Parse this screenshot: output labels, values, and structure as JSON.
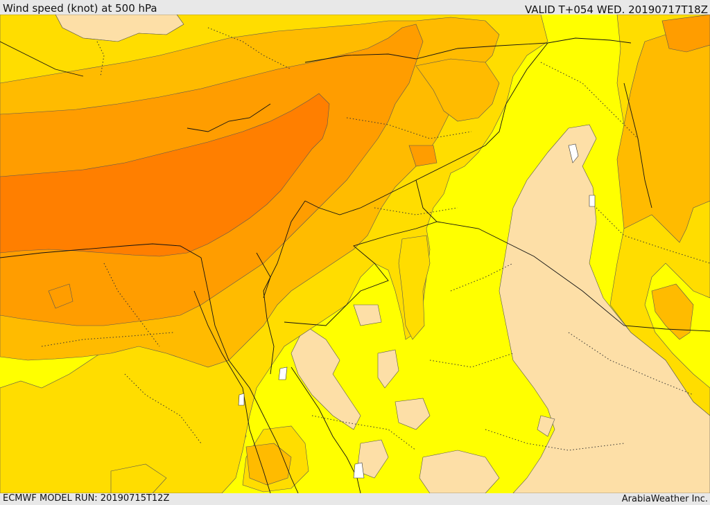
{
  "header": {
    "title": "Wind speed (knot) at 500 hPa",
    "valid": "VALID T+054 WED. 20190717T18Z"
  },
  "footer": {
    "model_run": "ECMWF MODEL RUN: 20190715T12Z",
    "credit": "ArabiaWeather Inc."
  },
  "map": {
    "variable": "wind speed at 500 hPa",
    "unit": "knot",
    "fill_colors": {
      "lightest": "#fddfa7",
      "base": "#ffff00",
      "level_2": "#ffdd00",
      "level_3": "#ffbb00",
      "level_4": "#ff9d00",
      "strongest": "#ff7f00"
    }
  }
}
